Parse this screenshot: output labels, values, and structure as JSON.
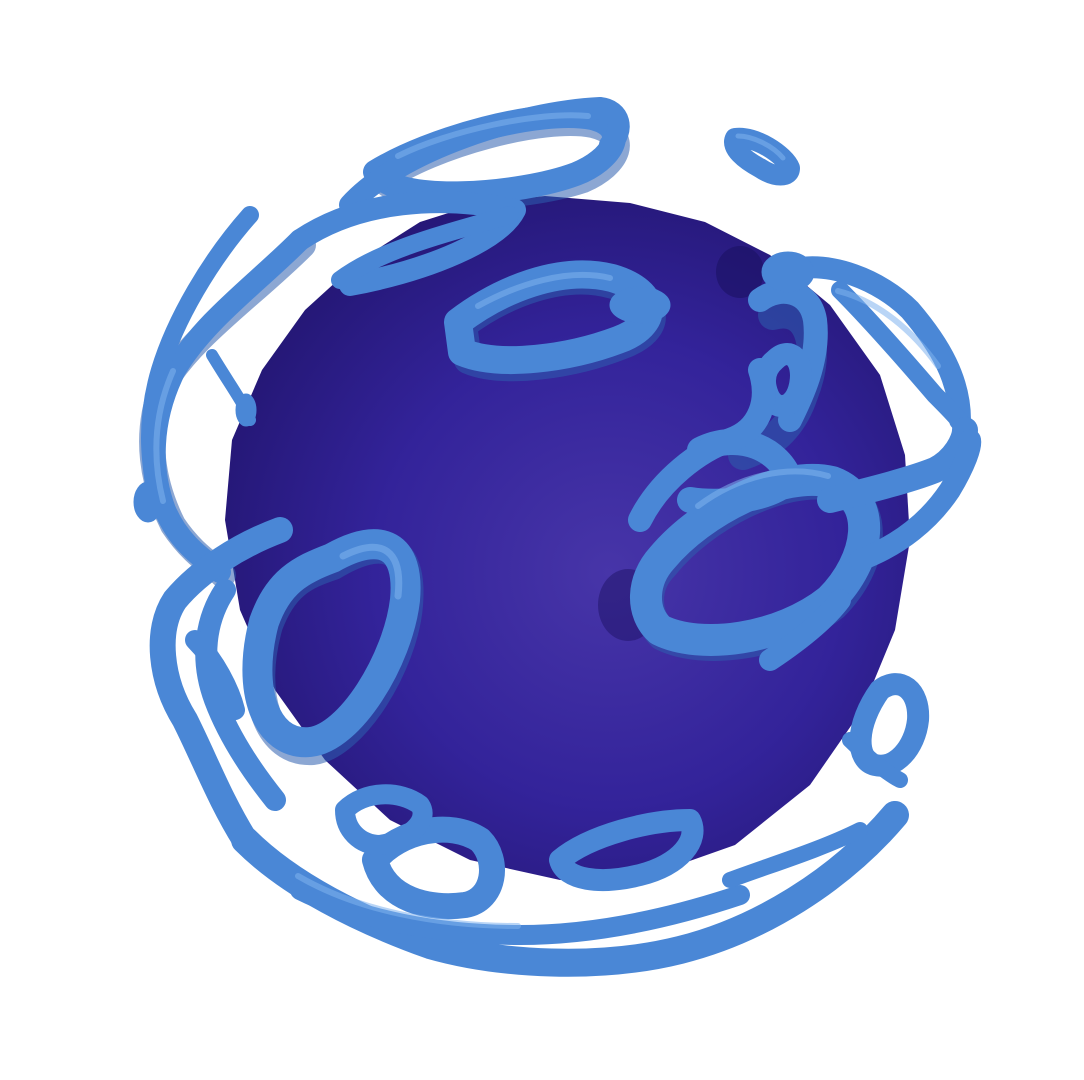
{
  "scene": {
    "background_color": "#ffffff",
    "sphere": {
      "color_core": "#4735a8",
      "color_mid": "#33239a",
      "color_edge": "#231672",
      "color_shadow": "#1a1060"
    },
    "blobs": {
      "color_base": "#4a87d6",
      "color_light": "#7fb3ee",
      "color_shadow": "#2d5fae"
    }
  }
}
